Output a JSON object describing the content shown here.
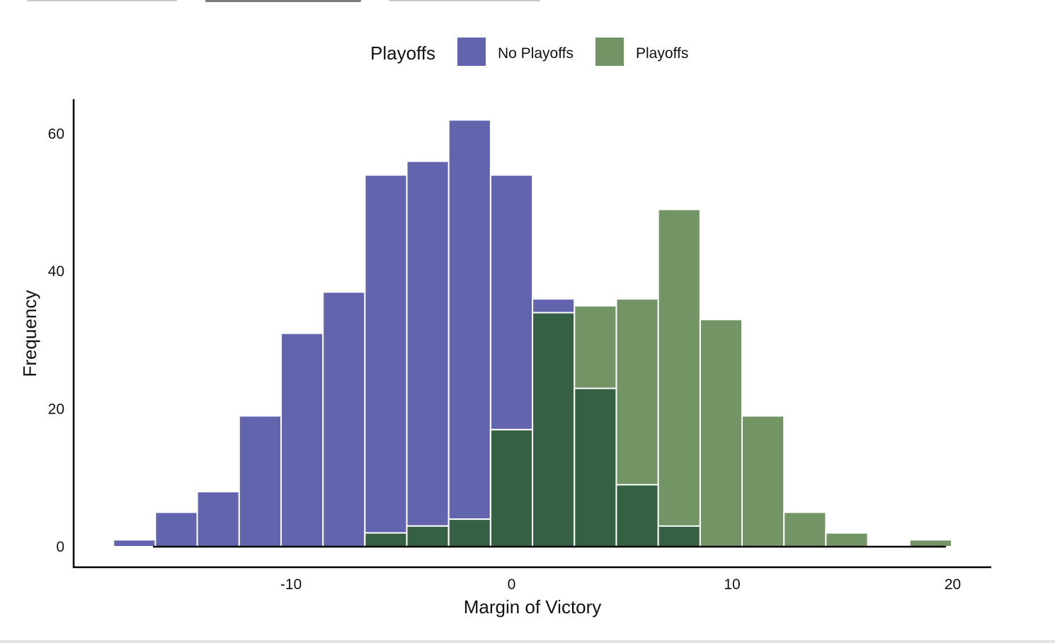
{
  "colors": {
    "no_playoffs": "#6264ad",
    "playoffs": "#739566",
    "overlap": "#356044",
    "axis": "#000000",
    "bar_stroke": "#ffffff"
  },
  "chart_data": {
    "type": "bar",
    "subtype": "overlapping-histogram",
    "title": "",
    "xlabel": "Margin of Victory",
    "ylabel": "Frequency",
    "xlim": [
      -18,
      22
    ],
    "ylim": [
      0,
      65
    ],
    "bin_width": 1.9,
    "x_ticks": [
      -10,
      0,
      10,
      20
    ],
    "x_tick_labels": [
      "-10",
      "0",
      "10",
      "20"
    ],
    "y_ticks": [
      0,
      20,
      40,
      60
    ],
    "y_tick_labels": [
      "0",
      "20",
      "40",
      "60"
    ],
    "legend": {
      "title": "Playoffs",
      "position": "top",
      "entries": [
        {
          "label": "No Playoffs",
          "series": "no_playoffs"
        },
        {
          "label": "Playoffs",
          "series": "playoffs"
        }
      ]
    },
    "bin_centers": [
      -17.1,
      -15.2,
      -13.3,
      -11.4,
      -9.5,
      -7.6,
      -5.7,
      -3.8,
      -1.9,
      0.0,
      1.9,
      3.8,
      5.7,
      7.6,
      9.5,
      11.4,
      13.3,
      15.2,
      17.1,
      19.0
    ],
    "series": [
      {
        "name": "No Playoffs",
        "key": "no_playoffs",
        "values": [
          1,
          5,
          8,
          19,
          31,
          37,
          54,
          56,
          62,
          54,
          36,
          23,
          9,
          3,
          0,
          0,
          0,
          0,
          0,
          0
        ]
      },
      {
        "name": "Playoffs",
        "key": "playoffs",
        "values": [
          0,
          0,
          0,
          0,
          0,
          0,
          2,
          3,
          4,
          17,
          34,
          35,
          36,
          49,
          33,
          19,
          5,
          2,
          0,
          1
        ]
      }
    ]
  }
}
